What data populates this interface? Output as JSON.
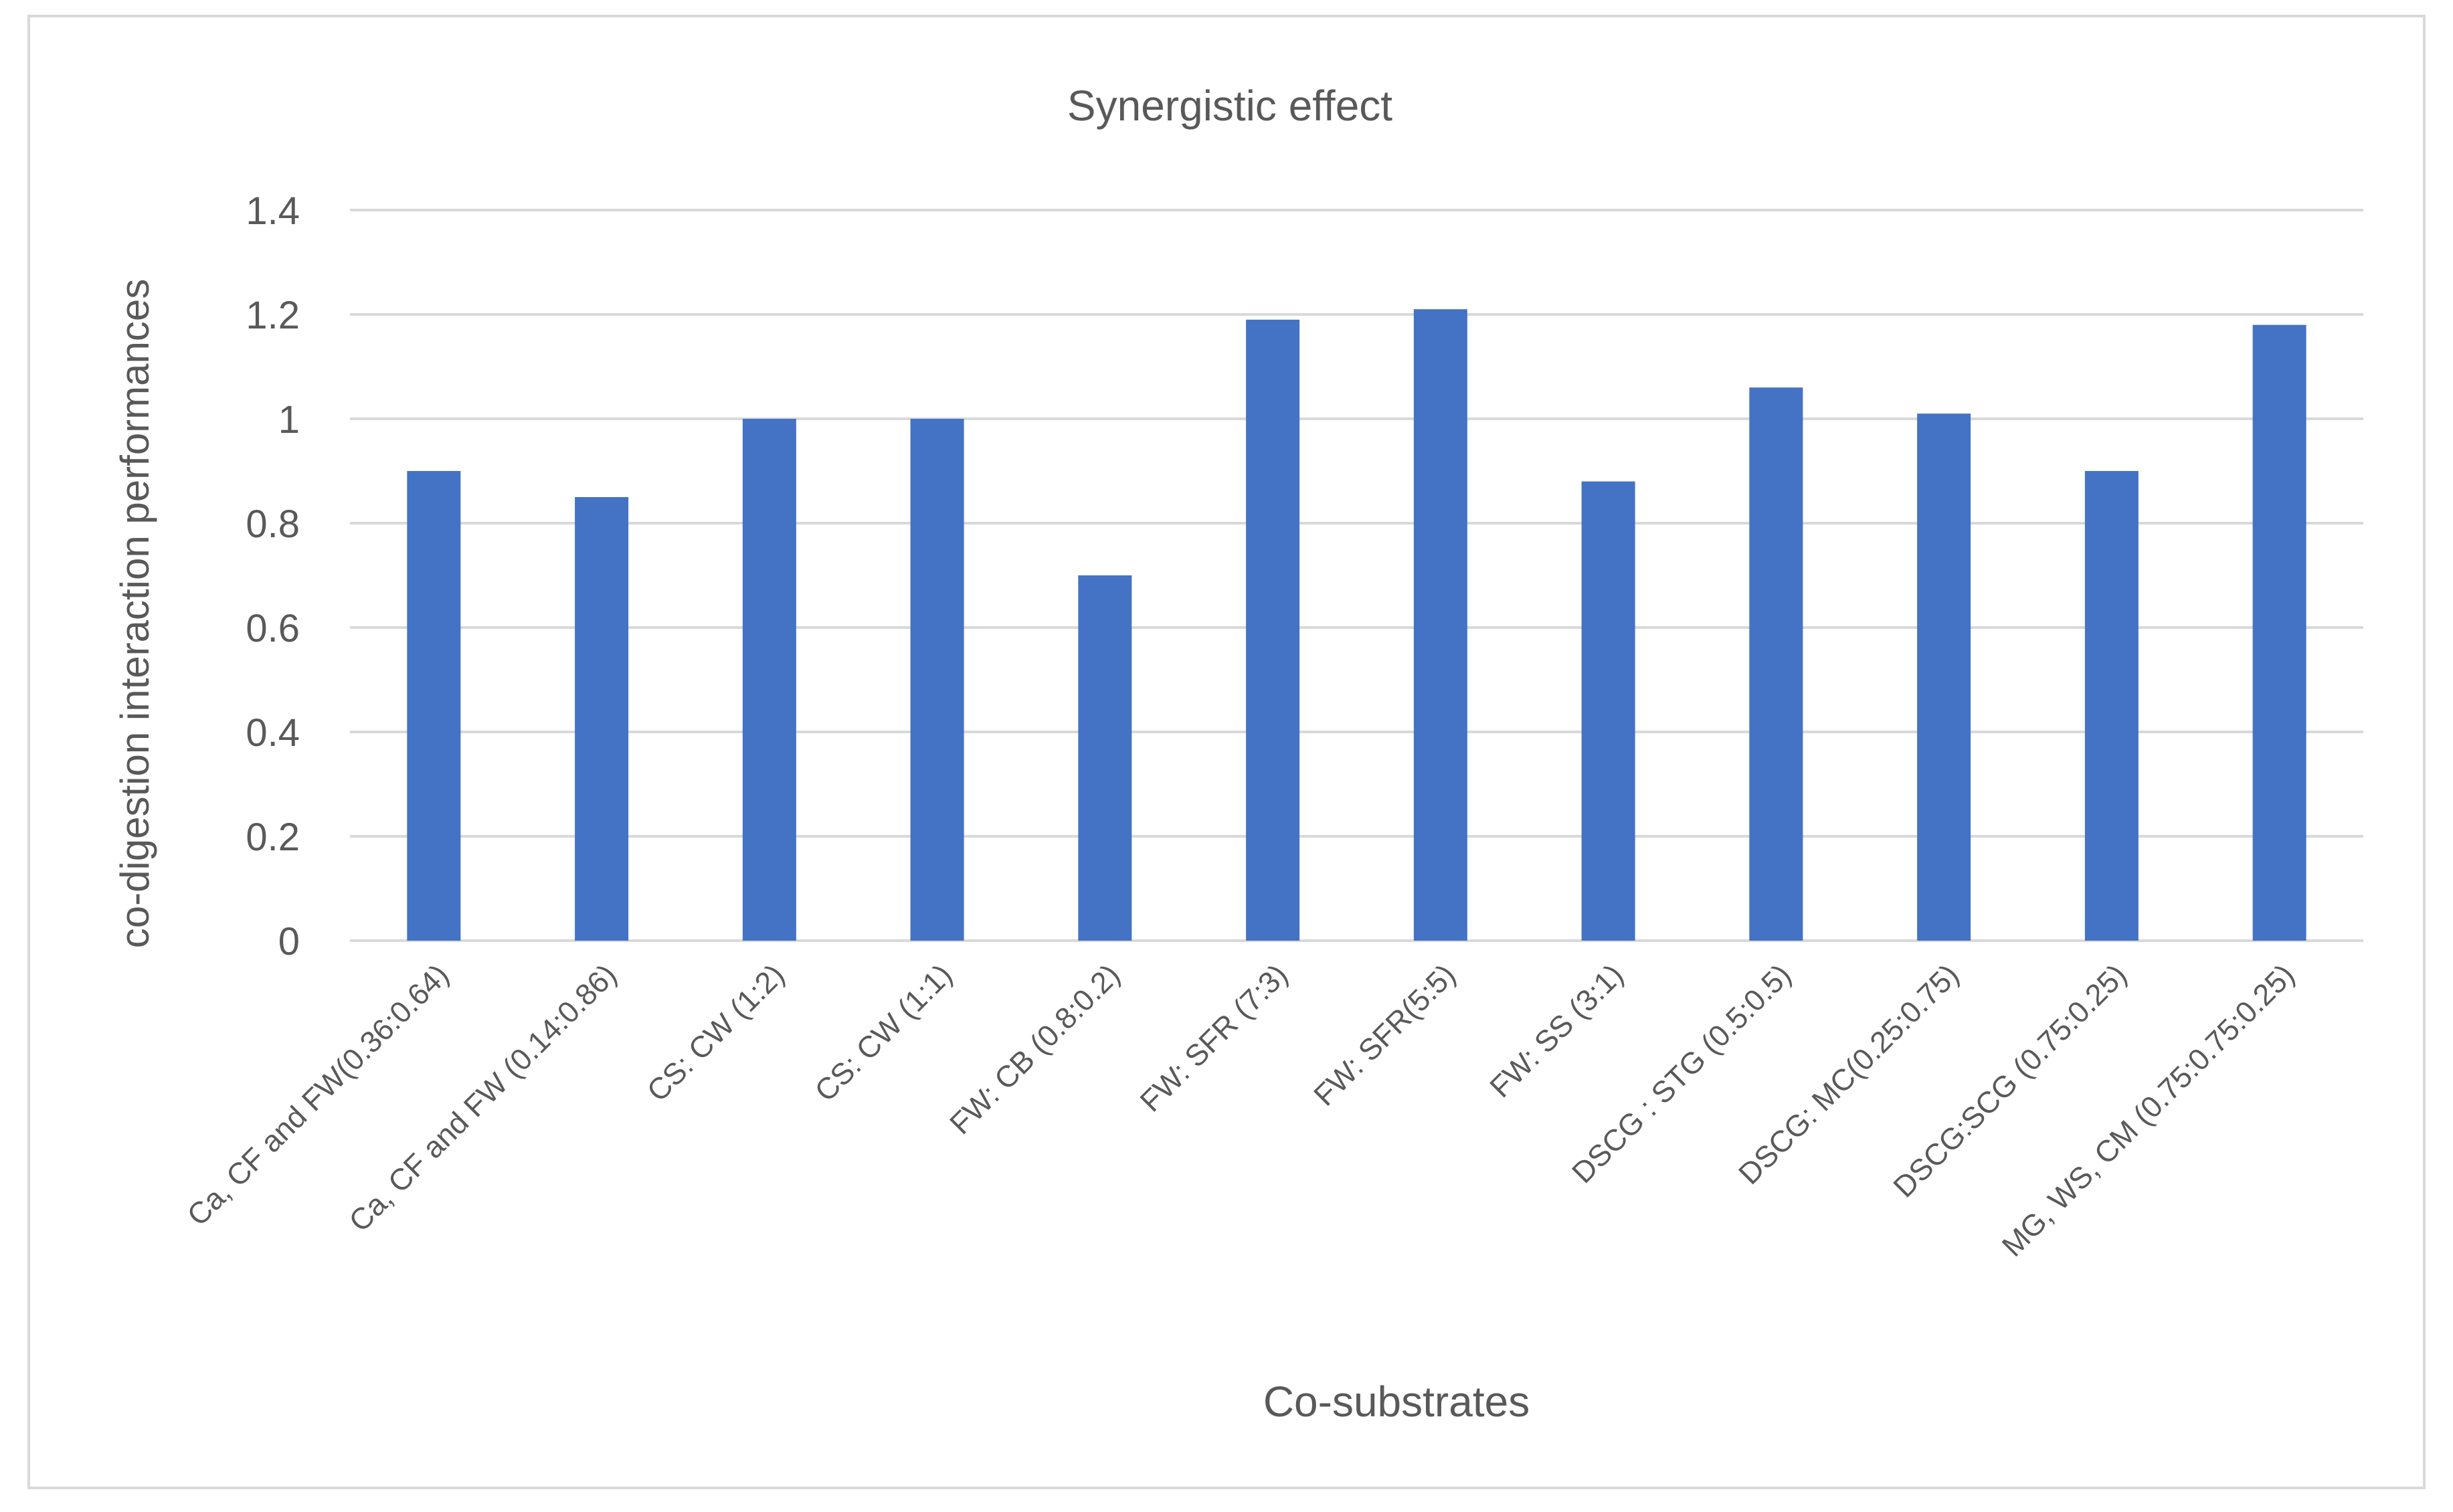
{
  "chart_data": {
    "type": "bar",
    "title": "Synergistic effect",
    "xlabel": "Co-substrates",
    "ylabel": "co-digestion interaction performances",
    "ylim": [
      0,
      1.4
    ],
    "yticks": [
      0,
      0.2,
      0.4,
      0.6,
      0.8,
      1,
      1.2,
      1.4
    ],
    "ytick_labels": [
      "0",
      "0.2",
      "0.4",
      "0.6",
      "0.8",
      "1",
      "1.2",
      "1.4"
    ],
    "grid": true,
    "legend": "none",
    "categories": [
      "Ca, CF and FW(0.36:0.64)",
      "Ca, CF and FW (0.14:0.86)",
      "CS: CW (1:2)",
      "CS: CW (1:1)",
      "FW: CB (0.8:0.2)",
      "FW: SFR (7:3)",
      "FW: SFR(5:5)",
      "FW: SS (3:1)",
      "DSCG : STG (0.5:0.5)",
      "DSCG: MC(0.25:0.75)",
      "DSCG:SCG (0.75:0.25)",
      "MG, WS, CM (0.75:0.75:0.25)"
    ],
    "values": [
      0.9,
      0.85,
      1.0,
      1.0,
      0.7,
      1.19,
      1.21,
      0.88,
      1.06,
      1.01,
      0.9,
      1.18
    ],
    "colors": {
      "bar": "#4472C4",
      "grid": "#D9D9D9",
      "text": "#595959",
      "border": "#D9D9D9"
    }
  }
}
